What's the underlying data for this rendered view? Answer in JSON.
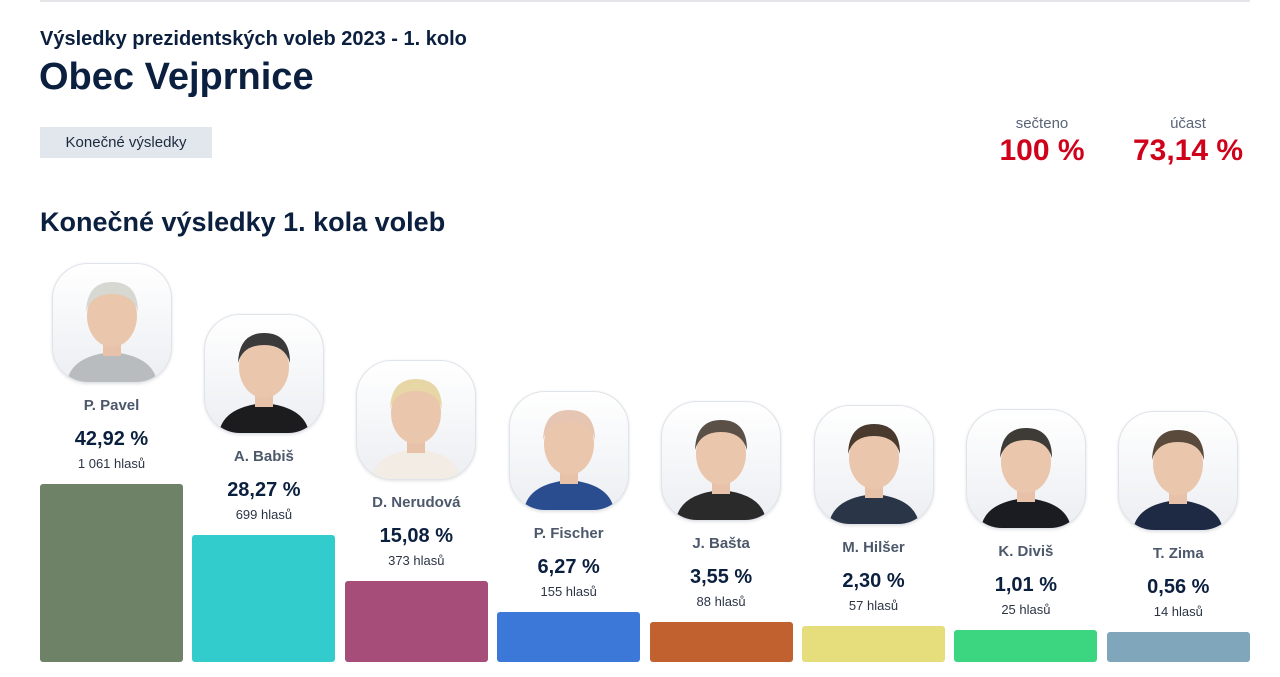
{
  "header": {
    "subtitle": "Výsledky prezidentských voleb 2023 - 1. kolo",
    "title": "Obec Vejprnice",
    "badge": "Konečné výsledky"
  },
  "stats": {
    "counted_label": "sečteno",
    "counted_value": "100 %",
    "turnout_label": "účast",
    "turnout_value": "73,14 %"
  },
  "section_title": "Konečné výsledky 1. kola voleb",
  "candidates": [
    {
      "name": "P. Pavel",
      "pct_label": "42,92 %",
      "pct": 42.92,
      "votes": "1 061 hlasů",
      "color": "#6e8268",
      "hair": "#d8d8d2",
      "suit": "#b9bcbf"
    },
    {
      "name": "A. Babiš",
      "pct_label": "28,27 %",
      "pct": 28.27,
      "votes": "699 hlasů",
      "color": "#33cccc",
      "hair": "#3a3a3a",
      "suit": "#1c1c1f"
    },
    {
      "name": "D. Nerudová",
      "pct_label": "15,08 %",
      "pct": 15.08,
      "votes": "373 hlasů",
      "color": "#a64d79",
      "hair": "#e8d7a6",
      "suit": "#f2ece4"
    },
    {
      "name": "P. Fischer",
      "pct_label": "6,27 %",
      "pct": 6.27,
      "votes": "155 hlasů",
      "color": "#3c78d8",
      "hair": "#e6c6b2",
      "suit": "#2a4d8f"
    },
    {
      "name": "J. Bašta",
      "pct_label": "3,55 %",
      "pct": 3.55,
      "votes": "88 hlasů",
      "color": "#c0612f",
      "hair": "#5a5048",
      "suit": "#2a2a2a"
    },
    {
      "name": "M. Hilšer",
      "pct_label": "2,30 %",
      "pct": 2.3,
      "votes": "57 hlasů",
      "color": "#e6dd7c",
      "hair": "#4a3a2e",
      "suit": "#2b3548"
    },
    {
      "name": "K. Diviš",
      "pct_label": "1,01 %",
      "pct": 1.01,
      "votes": "25 hlasů",
      "color": "#3bd67f",
      "hair": "#3e3a36",
      "suit": "#1a1c22"
    },
    {
      "name": "T. Zima",
      "pct_label": "0,56 %",
      "pct": 0.56,
      "votes": "14 hlasů",
      "color": "#7fa6bb",
      "hair": "#5a4a3c",
      "suit": "#1e2a44"
    }
  ]
}
